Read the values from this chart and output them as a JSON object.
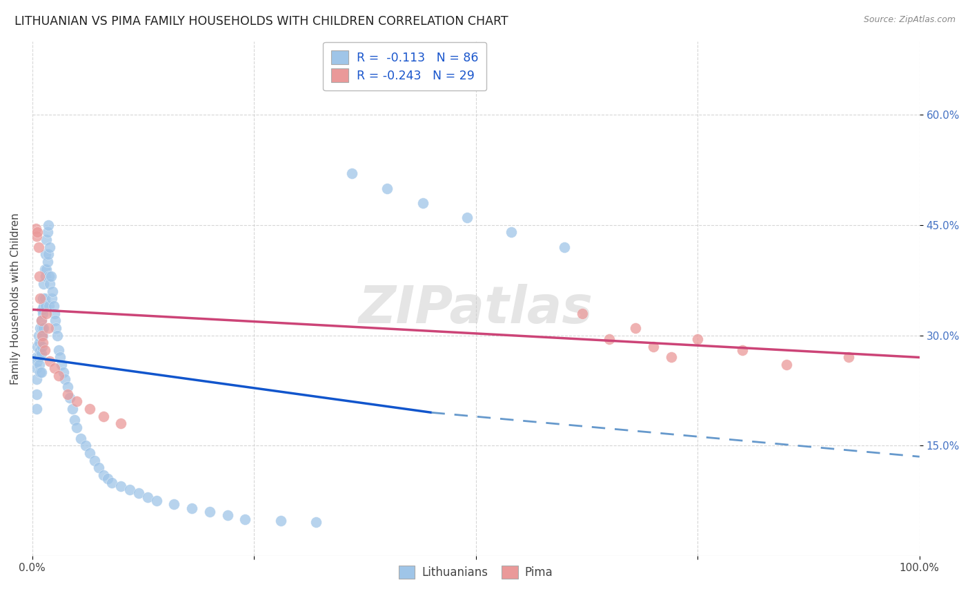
{
  "title": "LITHUANIAN VS PIMA FAMILY HOUSEHOLDS WITH CHILDREN CORRELATION CHART",
  "source": "Source: ZipAtlas.com",
  "ylabel": "Family Households with Children",
  "ytick_positions": [
    0.15,
    0.3,
    0.45,
    0.6
  ],
  "ytick_labels": [
    "15.0%",
    "30.0%",
    "45.0%",
    "60.0%"
  ],
  "legend_labels": [
    "Lithuanians",
    "Pima"
  ],
  "legend_R_blue": "R =  -0.113",
  "legend_N_blue": "N = 86",
  "legend_R_pink": "R = -0.243",
  "legend_N_pink": "N = 29",
  "blue_color": "#9FC5E8",
  "pink_color": "#EA9999",
  "blue_line_color": "#1155CC",
  "pink_line_color": "#CC4477",
  "blue_dash_color": "#6699CC",
  "watermark": "ZIPatlas",
  "lit_x": [
    0.005,
    0.005,
    0.005,
    0.005,
    0.005,
    0.006,
    0.006,
    0.007,
    0.007,
    0.008,
    0.008,
    0.009,
    0.009,
    0.009,
    0.01,
    0.01,
    0.01,
    0.01,
    0.011,
    0.011,
    0.011,
    0.012,
    0.012,
    0.012,
    0.013,
    0.013,
    0.013,
    0.014,
    0.014,
    0.015,
    0.015,
    0.015,
    0.016,
    0.016,
    0.017,
    0.017,
    0.018,
    0.018,
    0.019,
    0.019,
    0.02,
    0.02,
    0.021,
    0.022,
    0.023,
    0.024,
    0.025,
    0.026,
    0.027,
    0.028,
    0.03,
    0.031,
    0.033,
    0.035,
    0.037,
    0.04,
    0.042,
    0.045,
    0.048,
    0.05,
    0.055,
    0.06,
    0.065,
    0.07,
    0.075,
    0.08,
    0.085,
    0.09,
    0.1,
    0.11,
    0.12,
    0.13,
    0.14,
    0.16,
    0.18,
    0.2,
    0.22,
    0.24,
    0.28,
    0.32,
    0.36,
    0.4,
    0.44,
    0.49,
    0.54,
    0.6
  ],
  "lit_y": [
    0.27,
    0.255,
    0.24,
    0.22,
    0.2,
    0.285,
    0.265,
    0.3,
    0.27,
    0.29,
    0.26,
    0.31,
    0.28,
    0.25,
    0.32,
    0.3,
    0.275,
    0.25,
    0.335,
    0.31,
    0.285,
    0.35,
    0.33,
    0.3,
    0.37,
    0.34,
    0.31,
    0.39,
    0.35,
    0.41,
    0.38,
    0.34,
    0.43,
    0.39,
    0.44,
    0.4,
    0.45,
    0.41,
    0.38,
    0.34,
    0.42,
    0.37,
    0.38,
    0.35,
    0.36,
    0.34,
    0.33,
    0.32,
    0.31,
    0.3,
    0.28,
    0.27,
    0.26,
    0.25,
    0.24,
    0.23,
    0.215,
    0.2,
    0.185,
    0.175,
    0.16,
    0.15,
    0.14,
    0.13,
    0.12,
    0.11,
    0.105,
    0.1,
    0.095,
    0.09,
    0.085,
    0.08,
    0.075,
    0.07,
    0.065,
    0.06,
    0.055,
    0.05,
    0.048,
    0.046,
    0.52,
    0.5,
    0.48,
    0.46,
    0.44,
    0.42
  ],
  "pima_x": [
    0.004,
    0.005,
    0.006,
    0.007,
    0.008,
    0.009,
    0.01,
    0.011,
    0.012,
    0.014,
    0.016,
    0.018,
    0.02,
    0.025,
    0.03,
    0.04,
    0.05,
    0.065,
    0.08,
    0.1,
    0.62,
    0.65,
    0.68,
    0.7,
    0.72,
    0.75,
    0.8,
    0.85,
    0.92
  ],
  "pima_y": [
    0.445,
    0.435,
    0.44,
    0.42,
    0.38,
    0.35,
    0.32,
    0.3,
    0.29,
    0.28,
    0.33,
    0.31,
    0.265,
    0.255,
    0.245,
    0.22,
    0.21,
    0.2,
    0.19,
    0.18,
    0.33,
    0.295,
    0.31,
    0.285,
    0.27,
    0.295,
    0.28,
    0.26,
    0.27
  ]
}
